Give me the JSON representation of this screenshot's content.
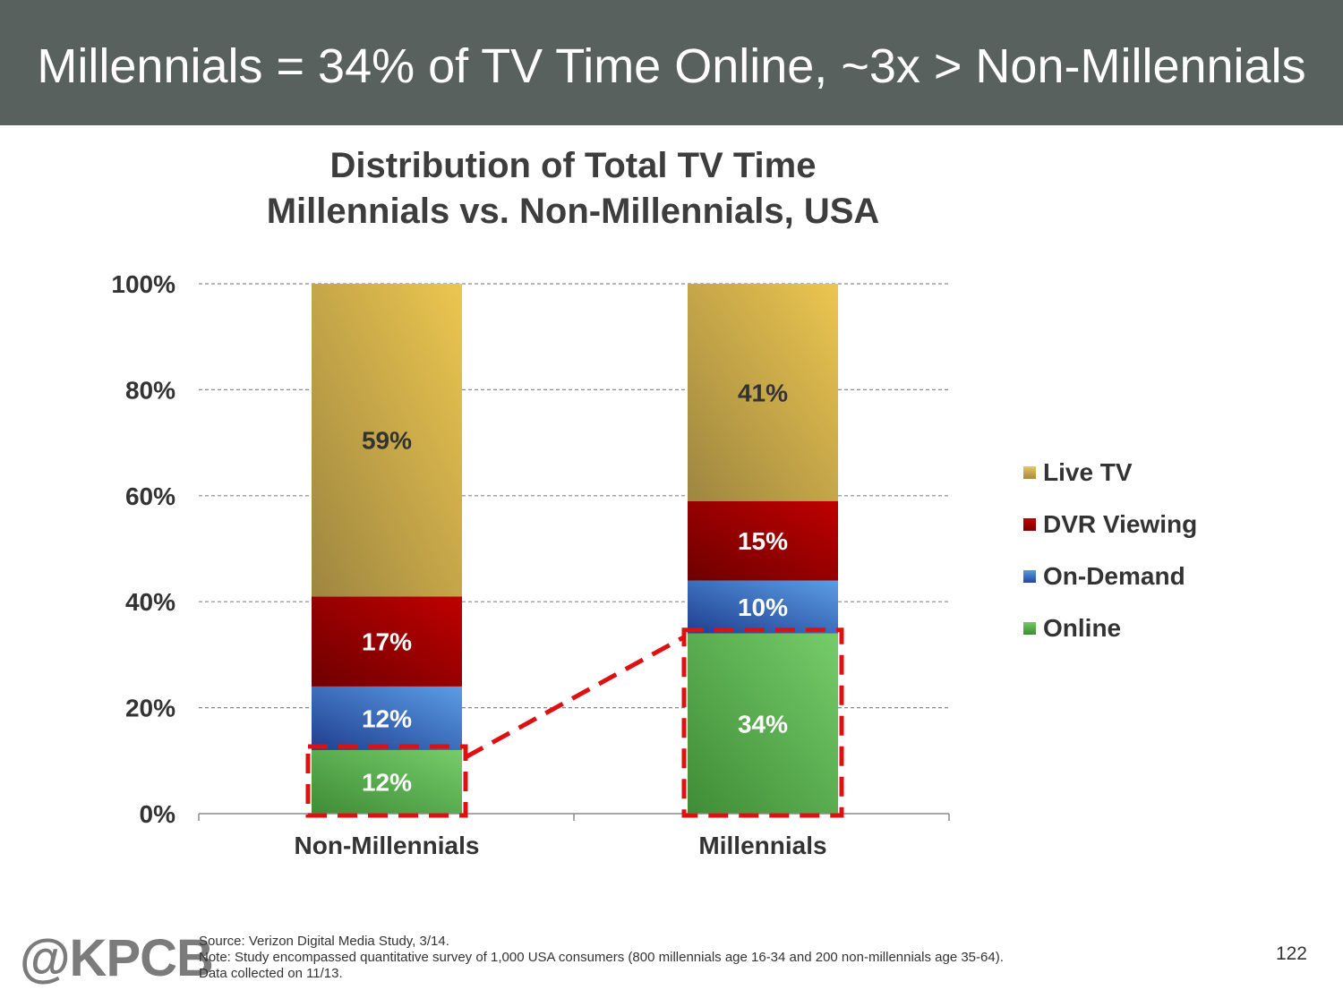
{
  "header": {
    "title": "Millennials = 34% of TV Time Online, ~3x > Non-Millennials"
  },
  "colors": {
    "header_bg": "#59615e",
    "live_tv": "#c9a94e",
    "dvr": "#a50000",
    "on_demand": "#2e5fb3",
    "online": "#56ad4b",
    "highlight": "#dd1111"
  },
  "chart_data": {
    "type": "bar",
    "stacked": true,
    "title": "Distribution of Total TV Time",
    "subtitle": "Millennials vs. Non-Millennials, USA",
    "xlabel": "",
    "ylabel": "",
    "ylim": [
      0,
      100
    ],
    "yticks": [
      "0%",
      "20%",
      "40%",
      "60%",
      "80%",
      "100%"
    ],
    "grid": true,
    "legend_position": "right",
    "categories": [
      "Non-Millennials",
      "Millennials"
    ],
    "series": [
      {
        "name": "Online",
        "values": [
          12,
          34
        ],
        "labels": [
          "12%",
          "34%"
        ]
      },
      {
        "name": "On-Demand",
        "values": [
          12,
          10
        ],
        "labels": [
          "12%",
          "10%"
        ]
      },
      {
        "name": "DVR Viewing",
        "values": [
          17,
          15
        ],
        "labels": [
          "17%",
          "15%"
        ]
      },
      {
        "name": "Live TV",
        "values": [
          59,
          41
        ],
        "labels": [
          "59%",
          "41%"
        ]
      }
    ],
    "legend": [
      "Live TV",
      "DVR Viewing",
      "On-Demand",
      "Online"
    ],
    "highlight": {
      "series": "Online",
      "style": "dashed box with connector"
    }
  },
  "footer": {
    "logo": "@KPCB",
    "source": "Source: Verizon Digital Media Study, 3/14.",
    "note": "Note: Study encompassed quantitative survey of 1,000 USA consumers (800 millennials age 16-34 and 200 non-millennials age 35-64).",
    "collected": "Data collected on 11/13.",
    "page_number": "122"
  }
}
